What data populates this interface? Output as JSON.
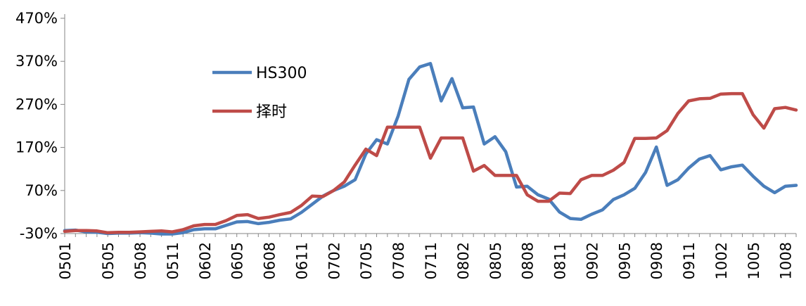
{
  "chart_data": {
    "type": "line",
    "title": "",
    "xlabel": "",
    "ylabel": "",
    "ylim": [
      -30,
      470
    ],
    "y_ticks": [
      "-30%",
      "70%",
      "170%",
      "270%",
      "370%",
      "470%"
    ],
    "y_tick_values": [
      -30,
      70,
      170,
      270,
      370,
      470
    ],
    "x_tick_labels": [
      "0501",
      "0505",
      "0508",
      "0511",
      "0602",
      "0605",
      "0608",
      "0611",
      "0702",
      "0705",
      "0708",
      "0711",
      "0802",
      "0805",
      "0808",
      "0811",
      "0902",
      "0905",
      "0908",
      "0911",
      "1002",
      "1005",
      "1008"
    ],
    "x_tick_indices": [
      0,
      4,
      7,
      10,
      13,
      16,
      19,
      22,
      25,
      28,
      31,
      34,
      37,
      40,
      43,
      46,
      49,
      52,
      55,
      58,
      61,
      64,
      67
    ],
    "grid": false,
    "legend_position": "upper-left-inside",
    "series": [
      {
        "name": "HS300",
        "color": "#4a7ebb",
        "values": [
          -23,
          -22,
          -26,
          -27,
          -30,
          -29,
          -29,
          -28,
          -29,
          -31,
          -31,
          -28,
          -21,
          -19,
          -19,
          -11,
          -3,
          -2,
          -7,
          -4,
          1,
          4,
          19,
          38,
          57,
          70,
          80,
          95,
          155,
          188,
          178,
          243,
          328,
          357,
          365,
          278,
          330,
          262,
          264,
          178,
          195,
          160,
          78,
          80,
          60,
          50,
          20,
          5,
          3,
          15,
          25,
          49,
          60,
          75,
          112,
          171,
          82,
          95,
          122,
          143,
          151,
          118,
          125,
          129,
          103,
          80,
          65,
          80,
          82
        ]
      },
      {
        "name": "择时",
        "color": "#be4b48",
        "values": [
          -25,
          -23,
          -23,
          -24,
          -28,
          -27,
          -27,
          -26,
          -25,
          -24,
          -26,
          -21,
          -12,
          -9,
          -9,
          0,
          12,
          14,
          5,
          8,
          14,
          19,
          35,
          57,
          56,
          70,
          90,
          129,
          166,
          151,
          217,
          217,
          217,
          217,
          145,
          192,
          192,
          192,
          115,
          128,
          105,
          105,
          105,
          60,
          45,
          45,
          64,
          63,
          95,
          105,
          105,
          117,
          135,
          191,
          191,
          192,
          209,
          249,
          278,
          283,
          284,
          294,
          295,
          295,
          246,
          215,
          260,
          263,
          257
        ]
      }
    ]
  }
}
